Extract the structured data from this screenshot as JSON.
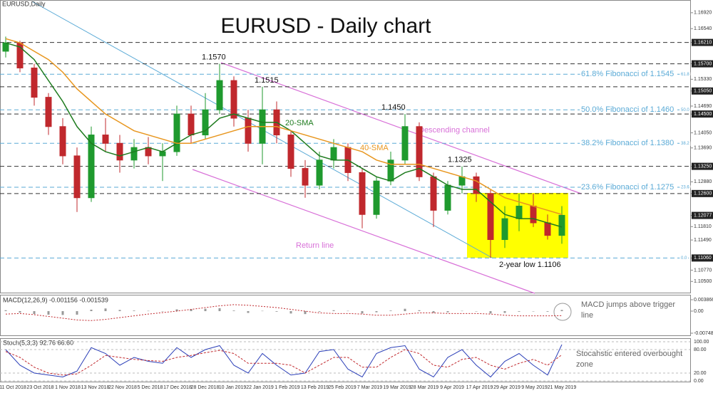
{
  "chart_data": [
    {
      "type": "candlestick",
      "title": "EURUSD - Daily chart",
      "subtitle": "EURUSD,Daily",
      "date_labels": [
        "11 Oct 2018",
        "23 Oct 2018",
        "1 Nov 2018",
        "13 Nov 2018",
        "22 Nov 2018",
        "5 Dec 2018",
        "17 Dec 2018",
        "28 Dec 2018",
        "10 Jan 2019",
        "22 Jan 2019",
        "1 Feb 2019",
        "13 Feb 2019",
        "25 Feb 2019",
        "7 Mar 2019",
        "19 Mar 2019",
        "28 Mar 2019",
        "9 Apr 2019",
        "17 Apr 2019",
        "29 Apr 2019",
        "9 May 2019",
        "21 May 2019"
      ],
      "open": [
        1.16,
        1.162,
        1.156,
        1.149,
        1.142,
        1.135,
        1.125,
        1.14,
        1.138,
        1.134,
        1.137,
        1.135,
        1.136,
        1.145,
        1.14,
        1.146,
        1.153,
        1.144,
        1.138,
        1.146,
        1.14,
        1.132,
        1.128,
        1.134,
        1.137,
        1.131,
        1.121,
        1.129,
        1.134,
        1.142,
        1.13,
        1.122,
        1.128,
        1.13,
        1.126,
        1.115,
        1.12,
        1.123,
        1.119,
        1.116
      ],
      "high": [
        1.1635,
        1.1625,
        1.157,
        1.15,
        1.144,
        1.137,
        1.142,
        1.144,
        1.14,
        1.139,
        1.1395,
        1.138,
        1.147,
        1.147,
        1.15,
        1.157,
        1.154,
        1.146,
        1.1515,
        1.148,
        1.141,
        1.134,
        1.136,
        1.139,
        1.138,
        1.132,
        1.13,
        1.136,
        1.145,
        1.143,
        1.131,
        1.129,
        1.1325,
        1.131,
        1.127,
        1.123,
        1.126,
        1.126,
        1.121,
        1.123
      ],
      "low": [
        1.1585,
        1.155,
        1.147,
        1.14,
        1.133,
        1.1216,
        1.124,
        1.136,
        1.131,
        1.132,
        1.133,
        1.129,
        1.135,
        1.138,
        1.139,
        1.145,
        1.142,
        1.136,
        1.133,
        1.138,
        1.13,
        1.125,
        1.127,
        1.132,
        1.129,
        1.1177,
        1.12,
        1.128,
        1.133,
        1.129,
        1.118,
        1.121,
        1.126,
        1.124,
        1.1106,
        1.113,
        1.117,
        1.118,
        1.115,
        1.114
      ],
      "close": [
        1.162,
        1.156,
        1.149,
        1.142,
        1.135,
        1.125,
        1.14,
        1.138,
        1.134,
        1.137,
        1.135,
        1.136,
        1.145,
        1.14,
        1.146,
        1.153,
        1.144,
        1.138,
        1.146,
        1.14,
        1.132,
        1.128,
        1.134,
        1.137,
        1.131,
        1.121,
        1.129,
        1.134,
        1.142,
        1.13,
        1.122,
        1.128,
        1.13,
        1.126,
        1.115,
        1.12,
        1.123,
        1.119,
        1.116,
        1.1208
      ],
      "up_color": "#1f9a2e",
      "down_color": "#c0282d",
      "series": [
        {
          "name": "20-SMA",
          "color": "#1e7b1e",
          "values": [
            1.162,
            1.161,
            1.158,
            1.153,
            1.148,
            1.142,
            1.138,
            1.136,
            1.135,
            1.136,
            1.137,
            1.136,
            1.138,
            1.14,
            1.141,
            1.144,
            1.145,
            1.144,
            1.143,
            1.143,
            1.141,
            1.138,
            1.135,
            1.134,
            1.134,
            1.132,
            1.13,
            1.129,
            1.131,
            1.132,
            1.13,
            1.128,
            1.127,
            1.127,
            1.124,
            1.121,
            1.12,
            1.12,
            1.119,
            1.118
          ]
        },
        {
          "name": "40-SMA",
          "color": "#e8961e",
          "values": [
            1.163,
            1.162,
            1.16,
            1.158,
            1.155,
            1.151,
            1.148,
            1.145,
            1.143,
            1.141,
            1.14,
            1.139,
            1.138,
            1.138,
            1.139,
            1.14,
            1.141,
            1.142,
            1.142,
            1.142,
            1.141,
            1.14,
            1.139,
            1.138,
            1.137,
            1.136,
            1.134,
            1.133,
            1.133,
            1.133,
            1.132,
            1.131,
            1.13,
            1.129,
            1.127,
            1.125,
            1.124,
            1.123,
            1.122,
            1.121
          ]
        }
      ],
      "ylim": [
        1.1025,
        1.1719
      ],
      "yticks": [
        {
          "value": 1.1692,
          "label": "1.16920"
        },
        {
          "value": 1.1654,
          "label": "1.16540"
        },
        {
          "value": 1.1621,
          "label": "1.16210",
          "boxed": true
        },
        {
          "value": 1.157,
          "label": "1.15700",
          "boxed": true
        },
        {
          "value": 1.1533,
          "label": "1.15330"
        },
        {
          "value": 1.1505,
          "label": "1.15050",
          "boxed": true
        },
        {
          "value": 1.1469,
          "label": "1.14690"
        },
        {
          "value": 1.145,
          "label": "1.14500",
          "boxed": true
        },
        {
          "value": 1.1405,
          "label": "1.14050"
        },
        {
          "value": 1.1369,
          "label": "1.13690"
        },
        {
          "value": 1.1325,
          "label": "1.13250",
          "boxed": true
        },
        {
          "value": 1.1288,
          "label": "1.12880"
        },
        {
          "value": 1.126,
          "label": "1.12600",
          "boxed": true
        },
        {
          "value": 1.12077,
          "label": "1.12077",
          "boxed": true
        },
        {
          "value": 1.1181,
          "label": "1.11810"
        },
        {
          "value": 1.1149,
          "label": "1.11490"
        },
        {
          "value": 1.1106,
          "label": "1.11060",
          "boxed": true
        },
        {
          "value": 1.1077,
          "label": "1.10770"
        },
        {
          "value": 1.105,
          "label": "1.10500"
        }
      ],
      "levels": [
        1.1621,
        1.157,
        1.1515,
        1.145,
        1.1325,
        1.126
      ],
      "level_color": "#333333",
      "fib_color": "#5aaad6",
      "fib_levels": [
        {
          "value": 1.1545,
          "label": "61.8% Fibonacci of 1.1545",
          "ratio": "61.8"
        },
        {
          "value": 1.146,
          "label": "50.0% Fibonacci of 1.1460",
          "ratio": "50.0"
        },
        {
          "value": 1.138,
          "label": "38.2% Fibonacci of 1.1380",
          "ratio": "38.2"
        },
        {
          "value": 1.1275,
          "label": "23.6% Fibonacci of 1.1275",
          "ratio": "23.6"
        },
        {
          "value": 1.1106,
          "ratio": "0.0"
        }
      ],
      "peak_labels": [
        {
          "value": 1.157,
          "label": "1.1570"
        },
        {
          "value": 1.1515,
          "label": "1.1515"
        },
        {
          "value": 1.145,
          "label": "1.1450"
        },
        {
          "value": 1.1325,
          "label": "1.1325"
        }
      ],
      "annotations": [
        "Descending channel",
        "Return line",
        "2-year low 1.1106"
      ]
    },
    {
      "type": "macd",
      "label": "MACD(12,26,9) -0.001156 -0.001539",
      "histogram": [
        0.0003,
        -0.0005,
        -0.001,
        -0.0012,
        -0.0013,
        -0.0012,
        0.0005,
        0.0009,
        0.0004,
        0.0002,
        0.0001,
        0.0,
        0.0006,
        0.0007,
        0.0008,
        0.001,
        0.0002,
        -0.0006,
        0.0001,
        -0.0002,
        -0.0008,
        -0.001,
        -0.0002,
        0.0003,
        0.0001,
        -0.0008,
        -0.0004,
        0.0002,
        0.0008,
        0.0003,
        -0.0006,
        -0.0004,
        0.0001,
        0.0,
        -0.0008,
        -0.0006,
        -0.0002,
        0.0,
        -0.0002,
        0.0004
      ],
      "signal": {
        "color": "#c0282d",
        "values": [
          -0.001,
          -0.0008,
          -0.0012,
          -0.0018,
          -0.0024,
          -0.003,
          -0.0032,
          -0.0028,
          -0.0022,
          -0.0016,
          -0.001,
          -0.0005,
          0.0,
          0.0006,
          0.0012,
          0.0018,
          0.0022,
          0.002,
          0.0016,
          0.0012,
          0.0006,
          0.0,
          -0.0006,
          -0.0008,
          -0.0008,
          -0.001,
          -0.0014,
          -0.0014,
          -0.001,
          -0.0006,
          -0.0006,
          -0.0008,
          -0.0008,
          -0.0008,
          -0.001,
          -0.0014,
          -0.0016,
          -0.0016,
          -0.0016,
          -0.001539
        ]
      },
      "ylim": [
        -0.007483,
        0.003866
      ],
      "yticks": [
        0.003866,
        {
          "value": 0,
          "label": "0.00"
        },
        -0.007483
      ],
      "annotation": [
        "MACD jumps above trigger",
        "line"
      ]
    },
    {
      "type": "stochastic",
      "label": "Stoch(5,3,3) 92.76 66.60",
      "series": [
        {
          "color": "#2b3fb8",
          "values": [
            80,
            40,
            20,
            15,
            10,
            25,
            85,
            70,
            40,
            60,
            50,
            45,
            85,
            60,
            80,
            90,
            40,
            20,
            70,
            40,
            15,
            20,
            75,
            80,
            30,
            10,
            70,
            85,
            90,
            30,
            10,
            60,
            80,
            40,
            10,
            50,
            70,
            40,
            15,
            92.76
          ]
        },
        {
          "color": "#c0282d",
          "values": [
            75,
            60,
            35,
            20,
            15,
            18,
            40,
            65,
            60,
            55,
            52,
            50,
            60,
            65,
            72,
            78,
            70,
            45,
            45,
            45,
            40,
            20,
            40,
            60,
            60,
            35,
            35,
            60,
            80,
            70,
            40,
            35,
            55,
            60,
            40,
            30,
            45,
            55,
            40,
            66.6
          ]
        }
      ],
      "ylim": [
        0,
        100
      ],
      "yticks": [
        {
          "value": 100,
          "label": "100.00"
        },
        {
          "value": 80,
          "label": "80.00"
        },
        {
          "value": 20,
          "label": "20.00"
        },
        {
          "value": 0,
          "label": "0.00"
        }
      ],
      "annotation": [
        "Stocahstic entered overbought",
        "zone"
      ]
    }
  ]
}
